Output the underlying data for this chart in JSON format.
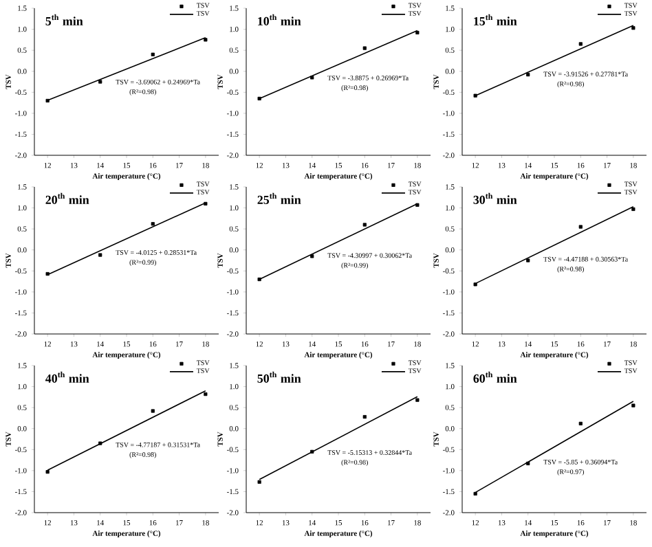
{
  "chart_data": [
    {
      "type": "scatter",
      "title": "5$^{th}$ min",
      "xlabel": "Air temperature (°C)",
      "ylabel": "TSV",
      "xlim": [
        11.5,
        18.5
      ],
      "xticks": [
        12,
        13,
        14,
        15,
        16,
        17,
        18
      ],
      "ylim": [
        -2,
        1.5
      ],
      "yticks": [
        {
          "value": -2,
          "label": "-2.0"
        },
        {
          "value": -1.5,
          "label": "-1.5"
        },
        {
          "value": -1,
          "label": "-1.0"
        },
        {
          "value": -0.5,
          "label": "-0.5"
        },
        {
          "value": 0,
          "label": "0.0"
        },
        {
          "value": 0.5,
          "label": "0.5"
        },
        {
          "value": 1,
          "label": "1.0"
        },
        {
          "value": 1.5,
          "label": "1.5"
        }
      ],
      "legend": "top right",
      "annotations": [
        "TSV = -3.69062 + 0.24969*Ta",
        "(R²=0.98)"
      ],
      "series": [
        {
          "name": "TSV",
          "type": "scatter",
          "marker": "square",
          "color": "#000000",
          "x": [
            12,
            14,
            16,
            18
          ],
          "values": [
            -0.7,
            -0.25,
            0.4,
            0.75
          ]
        },
        {
          "name": "TSV",
          "type": "line",
          "marker": "none",
          "color": "#000000",
          "x": [
            12,
            18
          ],
          "values": [
            -0.69,
            0.8
          ]
        }
      ]
    },
    {
      "type": "scatter",
      "title": "10$^{th}$ min",
      "xlabel": "Air temperature (°C)",
      "ylabel": "TSV",
      "xlim": [
        11.5,
        18.5
      ],
      "xticks": [
        12,
        13,
        14,
        15,
        16,
        17,
        18
      ],
      "ylim": [
        -2,
        1.5
      ],
      "yticks": [
        {
          "value": -2,
          "label": "-2.0"
        },
        {
          "value": -1.5,
          "label": "-1.5"
        },
        {
          "value": -1,
          "label": "-1.0"
        },
        {
          "value": -0.5,
          "label": "-0.5"
        },
        {
          "value": 0,
          "label": "0.0"
        },
        {
          "value": 0.5,
          "label": "0.5"
        },
        {
          "value": 1,
          "label": "1.0"
        },
        {
          "value": 1.5,
          "label": "1.5"
        }
      ],
      "legend": "top right",
      "annotations": [
        "TSV = -3.8875 + 0.26969*Ta",
        "(R²=0.98)"
      ],
      "series": [
        {
          "name": "TSV",
          "type": "scatter",
          "marker": "square",
          "color": "#000000",
          "x": [
            12,
            14,
            16,
            18
          ],
          "values": [
            -0.65,
            -0.15,
            0.55,
            0.92
          ]
        },
        {
          "name": "TSV",
          "type": "line",
          "marker": "none",
          "color": "#000000",
          "x": [
            12,
            18
          ],
          "values": [
            -0.65,
            0.97
          ]
        }
      ]
    },
    {
      "type": "scatter",
      "title": "15$^{th}$ min",
      "xlabel": "Air temperature (°C)",
      "ylabel": "TSV",
      "xlim": [
        11.5,
        18.5
      ],
      "xticks": [
        12,
        13,
        14,
        15,
        16,
        17,
        18
      ],
      "ylim": [
        -2,
        1.5
      ],
      "yticks": [
        {
          "value": -2,
          "label": "-2.0"
        },
        {
          "value": -1.5,
          "label": "-1.5"
        },
        {
          "value": -1,
          "label": "-1.0"
        },
        {
          "value": -0.5,
          "label": "-0.5"
        },
        {
          "value": 0,
          "label": "0.0"
        },
        {
          "value": 0.5,
          "label": "0.5"
        },
        {
          "value": 1,
          "label": "1.0"
        },
        {
          "value": 1.5,
          "label": "1.5"
        }
      ],
      "legend": "top right",
      "annotations": [
        "TSV = -3.91526 + 0.27781*Ta",
        "(R²=0.98)"
      ],
      "series": [
        {
          "name": "TSV",
          "type": "scatter",
          "marker": "square",
          "color": "#000000",
          "x": [
            12,
            14,
            16,
            18
          ],
          "values": [
            -0.58,
            -0.08,
            0.65,
            1.03
          ]
        },
        {
          "name": "TSV",
          "type": "line",
          "marker": "none",
          "color": "#000000",
          "x": [
            12,
            18
          ],
          "values": [
            -0.58,
            1.09
          ]
        }
      ]
    },
    {
      "type": "scatter",
      "title": "20$^{th}$ min",
      "xlabel": "Air temperature (°C)",
      "ylabel": "TSV",
      "xlim": [
        11.5,
        18.5
      ],
      "xticks": [
        12,
        13,
        14,
        15,
        16,
        17,
        18
      ],
      "ylim": [
        -2,
        1.5
      ],
      "yticks": [
        {
          "value": -2,
          "label": "-2.0"
        },
        {
          "value": -1.5,
          "label": "-1.5"
        },
        {
          "value": -1,
          "label": "-1.0"
        },
        {
          "value": -0.5,
          "label": "-0.5"
        },
        {
          "value": 0,
          "label": "0.0"
        },
        {
          "value": 0.5,
          "label": "0.5"
        },
        {
          "value": 1,
          "label": "1.0"
        },
        {
          "value": 1.5,
          "label": "1.5"
        }
      ],
      "legend": "top right",
      "annotations": [
        "TSV = -4.0125 + 0.28531*Ta",
        "(R²=0.99)"
      ],
      "series": [
        {
          "name": "TSV",
          "type": "scatter",
          "marker": "square",
          "color": "#000000",
          "x": [
            12,
            14,
            16,
            18
          ],
          "values": [
            -0.57,
            -0.12,
            0.62,
            1.1
          ]
        },
        {
          "name": "TSV",
          "type": "line",
          "marker": "none",
          "color": "#000000",
          "x": [
            12,
            18
          ],
          "values": [
            -0.59,
            1.12
          ]
        }
      ]
    },
    {
      "type": "scatter",
      "title": "25$^{th}$ min",
      "xlabel": "Air temperature (°C)",
      "ylabel": "TSV",
      "xlim": [
        11.5,
        18.5
      ],
      "xticks": [
        12,
        13,
        14,
        15,
        16,
        17,
        18
      ],
      "ylim": [
        -2,
        1.5
      ],
      "yticks": [
        {
          "value": -2,
          "label": "-2.0"
        },
        {
          "value": -1.5,
          "label": "-1.5"
        },
        {
          "value": -1,
          "label": "-1.0"
        },
        {
          "value": -0.5,
          "label": "-0.5"
        },
        {
          "value": 0,
          "label": "0.0"
        },
        {
          "value": 0.5,
          "label": "0.5"
        },
        {
          "value": 1,
          "label": "1.0"
        },
        {
          "value": 1.5,
          "label": "1.5"
        }
      ],
      "legend": "top right",
      "annotations": [
        "TSV = -4.30997 + 0.30062*Ta",
        "(R²=0.99)"
      ],
      "series": [
        {
          "name": "TSV",
          "type": "scatter",
          "marker": "square",
          "color": "#000000",
          "x": [
            12,
            14,
            16,
            18
          ],
          "values": [
            -0.7,
            -0.15,
            0.6,
            1.07
          ]
        },
        {
          "name": "TSV",
          "type": "line",
          "marker": "none",
          "color": "#000000",
          "x": [
            12,
            18
          ],
          "values": [
            -0.7,
            1.1
          ]
        }
      ]
    },
    {
      "type": "scatter",
      "title": "30$^{th}$ min",
      "xlabel": "Air temperature (°C)",
      "ylabel": "TSV",
      "xlim": [
        11.5,
        18.5
      ],
      "xticks": [
        12,
        13,
        14,
        15,
        16,
        17,
        18
      ],
      "ylim": [
        -2,
        1.5
      ],
      "yticks": [
        {
          "value": -2,
          "label": "-2.0"
        },
        {
          "value": -1.5,
          "label": "-1.5"
        },
        {
          "value": -1,
          "label": "-1.0"
        },
        {
          "value": -0.5,
          "label": "-0.5"
        },
        {
          "value": 0,
          "label": "0.0"
        },
        {
          "value": 0.5,
          "label": "0.5"
        },
        {
          "value": 1,
          "label": "1.0"
        },
        {
          "value": 1.5,
          "label": "1.5"
        }
      ],
      "legend": "top right",
      "annotations": [
        "TSV = -4.47188 + 0.30563*Ta",
        "(R²=0.98)"
      ],
      "series": [
        {
          "name": "TSV",
          "type": "scatter",
          "marker": "square",
          "color": "#000000",
          "x": [
            12,
            14,
            16,
            18
          ],
          "values": [
            -0.82,
            -0.25,
            0.55,
            0.97
          ]
        },
        {
          "name": "TSV",
          "type": "line",
          "marker": "none",
          "color": "#000000",
          "x": [
            12,
            18
          ],
          "values": [
            -0.8,
            1.03
          ]
        }
      ]
    },
    {
      "type": "scatter",
      "title": "40$^{th}$ min",
      "xlabel": "Air temperature (°C)",
      "ylabel": "TSV",
      "xlim": [
        11.5,
        18.5
      ],
      "xticks": [
        12,
        13,
        14,
        15,
        16,
        17,
        18
      ],
      "ylim": [
        -2,
        1.5
      ],
      "yticks": [
        {
          "value": -2,
          "label": "-2.0"
        },
        {
          "value": -1.5,
          "label": "-1.5"
        },
        {
          "value": -1,
          "label": "-1.0"
        },
        {
          "value": -0.5,
          "label": "-0.5"
        },
        {
          "value": 0,
          "label": "0.0"
        },
        {
          "value": 0.5,
          "label": "0.5"
        },
        {
          "value": 1,
          "label": "1.0"
        },
        {
          "value": 1.5,
          "label": "1.5"
        }
      ],
      "legend": "top right",
      "annotations": [
        "TSV = -4.77187 + 0.31531*Ta",
        "(R²=0.98)"
      ],
      "series": [
        {
          "name": "TSV",
          "type": "scatter",
          "marker": "square",
          "color": "#000000",
          "x": [
            12,
            14,
            16,
            18
          ],
          "values": [
            -1.03,
            -0.35,
            0.42,
            0.82
          ]
        },
        {
          "name": "TSV",
          "type": "line",
          "marker": "none",
          "color": "#000000",
          "x": [
            12,
            18
          ],
          "values": [
            -0.99,
            0.9
          ]
        }
      ]
    },
    {
      "type": "scatter",
      "title": "50$^{th}$ min",
      "xlabel": "Air temperature (°C)",
      "ylabel": "TSV",
      "xlim": [
        11.5,
        18.5
      ],
      "xticks": [
        12,
        13,
        14,
        15,
        16,
        17,
        18
      ],
      "ylim": [
        -2,
        1.5
      ],
      "yticks": [
        {
          "value": -2,
          "label": "-2.0"
        },
        {
          "value": -1.5,
          "label": "-1.5"
        },
        {
          "value": -1,
          "label": "-1.0"
        },
        {
          "value": -0.5,
          "label": "-0.5"
        },
        {
          "value": 0,
          "label": "0.0"
        },
        {
          "value": 0.5,
          "label": "0.5"
        },
        {
          "value": 1,
          "label": "1.0"
        },
        {
          "value": 1.5,
          "label": "1.5"
        }
      ],
      "legend": "top right",
      "annotations": [
        "TSV = -5.15313 + 0.32844*Ta",
        "(R²=0.98)"
      ],
      "series": [
        {
          "name": "TSV",
          "type": "scatter",
          "marker": "square",
          "color": "#000000",
          "x": [
            12,
            14,
            16,
            18
          ],
          "values": [
            -1.27,
            -0.55,
            0.28,
            0.68
          ]
        },
        {
          "name": "TSV",
          "type": "line",
          "marker": "none",
          "color": "#000000",
          "x": [
            12,
            18
          ],
          "values": [
            -1.21,
            0.76
          ]
        }
      ]
    },
    {
      "type": "scatter",
      "title": "60$^{th}$ min",
      "xlabel": "Air temperature (°C)",
      "ylabel": "TSV",
      "xlim": [
        11.5,
        18.5
      ],
      "xticks": [
        12,
        13,
        14,
        15,
        16,
        17,
        18
      ],
      "ylim": [
        -2,
        1.5
      ],
      "yticks": [
        {
          "value": -2,
          "label": "-2.0"
        },
        {
          "value": -1.5,
          "label": "-1.5"
        },
        {
          "value": -1,
          "label": "-1.0"
        },
        {
          "value": -0.5,
          "label": "-0.5"
        },
        {
          "value": 0,
          "label": "0.0"
        },
        {
          "value": 0.5,
          "label": "0.5"
        },
        {
          "value": 1,
          "label": "1.0"
        },
        {
          "value": 1.5,
          "label": "1.5"
        }
      ],
      "legend": "top right",
      "annotations": [
        "TSV = -5.85 + 0.36094*Ta",
        "(R²=0.97)"
      ],
      "series": [
        {
          "name": "TSV",
          "type": "scatter",
          "marker": "square",
          "color": "#000000",
          "x": [
            12,
            14,
            16,
            18
          ],
          "values": [
            -1.55,
            -0.83,
            0.12,
            0.55
          ]
        },
        {
          "name": "TSV",
          "type": "line",
          "marker": "none",
          "color": "#000000",
          "x": [
            12,
            18
          ],
          "values": [
            -1.52,
            0.65
          ]
        }
      ]
    }
  ]
}
